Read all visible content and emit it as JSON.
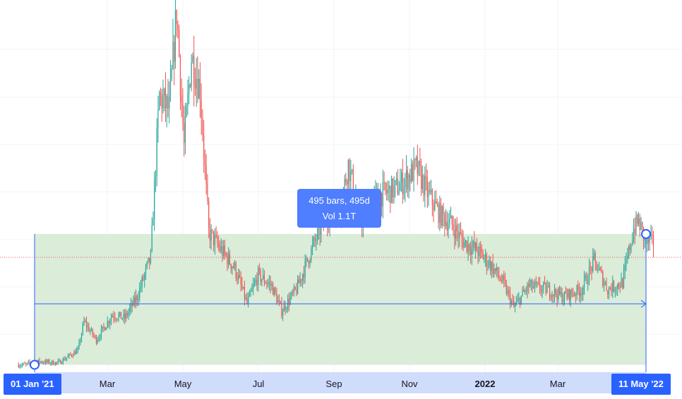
{
  "chart_data": {
    "type": "candlestick",
    "x_axis": {
      "tick_labels": [
        "Mar",
        "May",
        "Jul",
        "Sep",
        "Nov",
        "2022",
        "Mar"
      ],
      "bold_tick": "2022"
    },
    "colors": {
      "up": "#26a69a",
      "down": "#ef5350",
      "range_fill": "#dbecd9",
      "range_border": "#2962ff",
      "tooltip_bg": "#4f7eff",
      "axis_highlight": "#cfdcfb",
      "grid": "#f0f3fa"
    },
    "grid": true,
    "price_trend": [
      [
        "2020-12-25",
        0.9
      ],
      [
        "2021-01-01",
        1.0
      ],
      [
        "2021-01-20",
        0.95
      ],
      [
        "2021-02-05",
        1.3
      ],
      [
        "2021-02-10",
        2.1
      ],
      [
        "2021-02-20",
        1.6
      ],
      [
        "2021-03-05",
        2.3
      ],
      [
        "2021-03-15",
        2.2
      ],
      [
        "2021-03-25",
        2.8
      ],
      [
        "2021-04-05",
        3.9
      ],
      [
        "2021-04-12",
        8.4
      ],
      [
        "2021-04-20",
        8.0
      ],
      [
        "2021-04-26",
        10.8
      ],
      [
        "2021-05-02",
        7.0
      ],
      [
        "2021-05-08",
        9.5
      ],
      [
        "2021-05-15",
        8.6
      ],
      [
        "2021-05-22",
        4.6
      ],
      [
        "2021-06-01",
        4.1
      ],
      [
        "2021-06-12",
        3.6
      ],
      [
        "2021-06-22",
        2.6
      ],
      [
        "2021-07-01",
        3.4
      ],
      [
        "2021-07-12",
        3.1
      ],
      [
        "2021-07-20",
        2.4
      ],
      [
        "2021-08-01",
        3.0
      ],
      [
        "2021-08-12",
        4.0
      ],
      [
        "2021-08-25",
        5.1
      ],
      [
        "2021-09-05",
        5.2
      ],
      [
        "2021-09-12",
        6.5
      ],
      [
        "2021-09-22",
        4.9
      ],
      [
        "2021-10-05",
        5.6
      ],
      [
        "2021-10-20",
        5.8
      ],
      [
        "2021-11-01",
        6.2
      ],
      [
        "2021-11-06",
        6.4
      ],
      [
        "2021-11-15",
        5.7
      ],
      [
        "2021-11-25",
        5.1
      ],
      [
        "2021-12-05",
        4.8
      ],
      [
        "2021-12-15",
        4.3
      ],
      [
        "2021-12-25",
        4.1
      ],
      [
        "2022-01-05",
        3.7
      ],
      [
        "2022-01-15",
        3.2
      ],
      [
        "2022-01-24",
        2.5
      ],
      [
        "2022-02-05",
        3.1
      ],
      [
        "2022-02-20",
        3.0
      ],
      [
        "2022-03-05",
        2.8
      ],
      [
        "2022-03-20",
        3.0
      ],
      [
        "2022-03-30",
        3.8
      ],
      [
        "2022-04-10",
        3.0
      ],
      [
        "2022-04-22",
        3.2
      ],
      [
        "2022-05-01",
        4.7
      ],
      [
        "2022-05-05",
        4.9
      ],
      [
        "2022-05-11",
        4.3
      ]
    ],
    "range": {
      "start": "2021-01-01",
      "end": "2022-05-11",
      "top_value": 4.55,
      "bottom_value": 0.9,
      "arrow_value": 2.6
    },
    "current_price_line": 3.9,
    "y_range": [
      0.85,
      11.0
    ]
  },
  "tooltip": {
    "bars_text": "495 bars, 495d",
    "vol_text": "Vol 1.1T"
  },
  "axis_tags": {
    "start": "01 Jan '21",
    "end": "11 May '22"
  }
}
